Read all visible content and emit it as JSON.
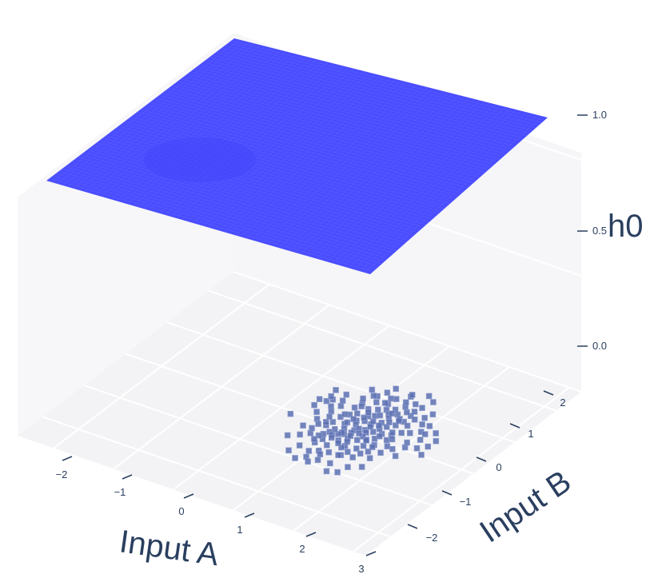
{
  "chart_data": {
    "type": "3d-surface-scatter",
    "axes": {
      "x": {
        "title": "Input A",
        "ticks": [
          "−2",
          "−1",
          "0",
          "1",
          "2",
          "3"
        ],
        "range": [
          -2.6,
          3.2
        ]
      },
      "y": {
        "title": "Input B",
        "ticks": [
          "−2",
          "−1",
          "0",
          "1",
          "2"
        ],
        "range": [
          -2.6,
          2.6
        ]
      },
      "z": {
        "title": "h0",
        "ticks": [
          "0.0",
          "0.5",
          "1.0"
        ],
        "range": [
          0,
          1.05
        ]
      }
    },
    "surface": {
      "name": "",
      "z_value": 1.0,
      "color": "#4a4dff"
    },
    "scatter": {
      "name": "",
      "color": "#5b6fb0",
      "z_value": 0.0,
      "points": [
        [
          1.12,
          -0.11
        ],
        [
          1.24,
          0.74
        ],
        [
          1.46,
          -0.06
        ],
        [
          0.92,
          -0.17
        ],
        [
          1.38,
          0.42
        ],
        [
          1.06,
          0.28
        ],
        [
          1.55,
          0.18
        ],
        [
          1.31,
          -0.36
        ],
        [
          0.84,
          0.55
        ],
        [
          1.18,
          0.05
        ],
        [
          1.62,
          0.61
        ],
        [
          1.09,
          -0.48
        ],
        [
          1.41,
          0.95
        ],
        [
          0.97,
          0.12
        ],
        [
          1.28,
          0.31
        ],
        [
          1.52,
          -0.22
        ],
        [
          0.78,
          -0.05
        ],
        [
          1.33,
          0.66
        ],
        [
          1.15,
          -0.29
        ],
        [
          1.7,
          0.08
        ],
        [
          1.01,
          0.83
        ],
        [
          1.45,
          0.27
        ],
        [
          1.22,
          -0.62
        ],
        [
          0.89,
          0.36
        ],
        [
          1.58,
          0.47
        ],
        [
          1.11,
          0.19
        ],
        [
          1.36,
          -0.14
        ],
        [
          0.95,
          -0.38
        ],
        [
          1.49,
          1.08
        ],
        [
          1.2,
          0.52
        ],
        [
          1.66,
          -0.31
        ],
        [
          1.04,
          0.01
        ],
        [
          1.3,
          0.14
        ],
        [
          1.76,
          0.35
        ],
        [
          0.86,
          0.71
        ],
        [
          1.43,
          -0.47
        ],
        [
          1.17,
          0.88
        ],
        [
          1.54,
          0.02
        ],
        [
          0.99,
          -0.21
        ],
        [
          1.26,
          0.39
        ],
        [
          1.61,
          0.79
        ],
        [
          1.07,
          -0.09
        ],
        [
          1.39,
          0.58
        ],
        [
          0.82,
          0.24
        ],
        [
          1.48,
          -0.33
        ],
        [
          1.13,
          0.46
        ],
        [
          1.68,
          0.22
        ],
        [
          1.23,
          -0.18
        ],
        [
          0.93,
          0.97
        ],
        [
          1.35,
          0.09
        ],
        [
          1.57,
          -0.55
        ],
        [
          1.02,
          0.62
        ],
        [
          1.29,
          -0.42
        ],
        [
          1.72,
          0.55
        ],
        [
          1.16,
          0.33
        ],
        [
          0.88,
          -0.26
        ],
        [
          1.44,
          0.72
        ],
        [
          1.21,
          0.12
        ],
        [
          1.63,
          -0.12
        ],
        [
          0.96,
          0.44
        ],
        [
          1.32,
          1.21
        ],
        [
          1.5,
          0.37
        ],
        [
          1.08,
          -0.66
        ],
        [
          1.37,
          -0.02
        ],
        [
          0.81,
          0.07
        ],
        [
          1.59,
          0.91
        ],
        [
          1.14,
          0.68
        ],
        [
          1.27,
          -0.25
        ],
        [
          1.8,
          -0.05
        ],
        [
          1.0,
          0.29
        ],
        [
          1.42,
          0.16
        ],
        [
          0.91,
          -0.51
        ],
        [
          1.53,
          0.64
        ],
        [
          1.19,
          -0.35
        ],
        [
          1.34,
          0.81
        ],
        [
          1.65,
          0.29
        ],
        [
          1.05,
          -0.15
        ],
        [
          1.25,
          0.57
        ],
        [
          0.85,
          -0.33
        ],
        [
          1.47,
          -0.08
        ],
        [
          1.12,
          1.02
        ],
        [
          1.71,
          0.74
        ],
        [
          0.98,
          0.17
        ],
        [
          1.4,
          -0.59
        ],
        [
          1.56,
          0.11
        ],
        [
          1.1,
          0.4
        ],
        [
          1.31,
          0.25
        ],
        [
          0.9,
          0.63
        ],
        [
          1.6,
          -0.41
        ],
        [
          1.18,
          -0.02
        ],
        [
          1.46,
          0.49
        ],
        [
          1.03,
          -0.28
        ],
        [
          1.36,
          0.7
        ],
        [
          1.75,
          0.14
        ],
        [
          0.83,
          0.33
        ],
        [
          1.22,
          -0.1
        ],
        [
          1.51,
          0.84
        ],
        [
          1.07,
          0.55
        ],
        [
          1.28,
          0.02
        ],
        [
          1.64,
          -0.18
        ],
        [
          0.94,
          -0.07
        ],
        [
          1.39,
          0.34
        ],
        [
          1.15,
          -0.73
        ],
        [
          1.55,
          0.59
        ],
        [
          1.86,
          0.41
        ],
        [
          0.34,
          0.3
        ],
        [
          0.42,
          0.48
        ],
        [
          0.47,
          0.56
        ],
        [
          0.55,
          0.4
        ],
        [
          0.63,
          0.29
        ],
        [
          0.36,
          0.79
        ],
        [
          2.32,
          0.02
        ],
        [
          2.28,
          0.43
        ],
        [
          2.04,
          -0.2
        ],
        [
          2.02,
          0.06
        ],
        [
          1.97,
          0.52
        ],
        [
          2.17,
          0.13
        ],
        [
          0.2,
          -0.07
        ],
        [
          1.82,
          -0.69
        ],
        [
          1.62,
          -0.99
        ],
        [
          1.37,
          -0.61
        ],
        [
          1.03,
          -0.89
        ],
        [
          0.78,
          -0.69
        ],
        [
          0.49,
          -0.56
        ],
        [
          1.52,
          1.36
        ],
        [
          1.66,
          1.26
        ],
        [
          1.84,
          0.99
        ],
        [
          1.87,
          0.69
        ],
        [
          0.77,
          1.07
        ],
        [
          1.03,
          1.27
        ],
        [
          1.21,
          -0.87
        ],
        [
          0.62,
          -0.45
        ],
        [
          0.73,
          0.02
        ],
        [
          0.72,
          -0.34
        ],
        [
          0.66,
          0.48
        ],
        [
          0.8,
          0.81
        ],
        [
          0.4,
          0.62
        ],
        [
          0.58,
          0.02
        ],
        [
          0.52,
          -0.23
        ],
        [
          0.69,
          0.16
        ],
        [
          0.99,
          1.12
        ],
        [
          1.31,
          1.26
        ],
        [
          1.8,
          0.85
        ],
        [
          1.97,
          0.18
        ],
        [
          2.08,
          0.34
        ],
        [
          2.27,
          0.25
        ],
        [
          1.78,
          -0.44
        ],
        [
          1.66,
          -0.8
        ],
        [
          1.48,
          -1.05
        ],
        [
          1.12,
          -0.98
        ],
        [
          0.92,
          -1.0
        ],
        [
          0.73,
          -0.88
        ],
        [
          1.82,
          -0.24
        ],
        [
          2.05,
          0.5
        ],
        [
          0.88,
          0.95
        ],
        [
          0.55,
          0.77
        ],
        [
          0.67,
          -0.08
        ],
        [
          0.85,
          -0.44
        ],
        [
          1.19,
          1.05
        ],
        [
          1.62,
          1.05
        ],
        [
          0.47,
          0.17
        ],
        [
          0.31,
          0.47
        ],
        [
          0.6,
          0.61
        ],
        [
          0.66,
          -0.22
        ],
        [
          0.97,
          -0.74
        ],
        [
          1.4,
          -0.85
        ],
        [
          1.9,
          -0.07
        ],
        [
          1.98,
          0.71
        ],
        [
          2.16,
          0.6
        ],
        [
          1.35,
          1.05
        ],
        [
          1.12,
          0.88
        ]
      ]
    },
    "grid": true,
    "legend": "none"
  }
}
